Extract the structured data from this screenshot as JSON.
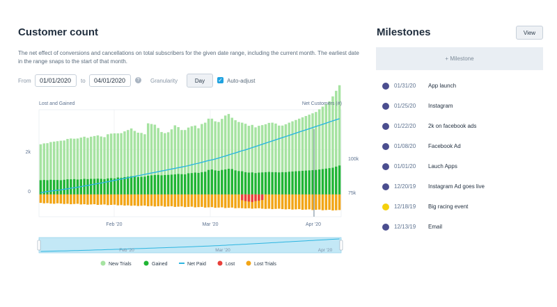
{
  "page": {
    "title": "Customer count",
    "description": "The net effect of conversions and cancellations on total subscribers for the given date range, including the current month. The earliest date in the range snaps to the start of that month."
  },
  "filters": {
    "from_label": "From",
    "from_value": "01/01/2020",
    "to_label": "to",
    "to_value": "04/01/2020",
    "help_icon": "?",
    "granularity_label": "Granularity",
    "granularity_value": "Day",
    "auto_adjust_label": "Auto-adjust",
    "auto_adjust_checked": true
  },
  "chart_data": {
    "type": "bar",
    "left_axis_title": "Lost and Gained",
    "right_axis_title": "Net Customers (#)",
    "left_ticks": [
      "2k",
      "0"
    ],
    "right_ticks": [
      "100k",
      "75k"
    ],
    "x_ticks": [
      "Feb '20",
      "Mar '20",
      "Apr '20"
    ],
    "range_ticks": [
      "Feb '20",
      "Mar '20",
      "Apr '20"
    ],
    "legend": [
      {
        "name": "New Trials",
        "color": "#a6e3a1"
      },
      {
        "name": "Gained",
        "color": "#20b534"
      },
      {
        "name": "Net Paid",
        "color": "#2cb5e0"
      },
      {
        "name": "Lost",
        "color": "#e8403a"
      },
      {
        "name": "Lost Trials",
        "color": "#f2a516"
      }
    ],
    "colors": {
      "new_trials": "#a6e3a1",
      "gained": "#20b534",
      "net_paid": "#2cb5e0",
      "lost": "#e8403a",
      "lost_trials": "#f2a516"
    },
    "left_range": [
      -1000,
      3800
    ],
    "right_range": [
      66000,
      114000
    ],
    "series": [
      {
        "name": "New Trials",
        "values": [
          1610,
          1640,
          1660,
          1690,
          1720,
          1740,
          1770,
          1760,
          1810,
          1830,
          1810,
          1840,
          1870,
          1890,
          1850,
          1890,
          1920,
          1940,
          1900,
          1880,
          1980,
          2000,
          2020,
          1980,
          2000,
          2050,
          2090,
          2140,
          2050,
          1990,
          1970,
          1900,
          2350,
          2300,
          2260,
          2100,
          1940,
          1880,
          1910,
          2030,
          2200,
          2100,
          1980,
          1990,
          2050,
          2100,
          2110,
          2000,
          2160,
          2200,
          2300,
          2280,
          2200,
          2190,
          2290,
          2420,
          2460,
          2300,
          2250,
          2200,
          2180,
          2170,
          2100,
          2130,
          2050,
          2100,
          2120,
          2150,
          2200,
          2220,
          2180,
          2100,
          2090,
          2150,
          2200,
          2250,
          2300,
          2350,
          2400,
          2450,
          2500,
          2550,
          2600,
          2700,
          2800,
          2900,
          3000,
          3200,
          3400,
          3600
        ]
      },
      {
        "name": "Gained",
        "values": [
          640,
          650,
          640,
          660,
          650,
          650,
          640,
          660,
          680,
          680,
          690,
          670,
          680,
          700,
          690,
          700,
          700,
          710,
          700,
          690,
          720,
          730,
          720,
          760,
          750,
          780,
          800,
          820,
          800,
          780,
          790,
          800,
          840,
          860,
          870,
          880,
          860,
          870,
          880,
          890,
          900,
          920,
          910,
          900,
          950,
          960,
          980,
          970,
          1000,
          1020,
          1100,
          1120,
          1080,
          1060,
          1100,
          1120,
          1150,
          1140,
          1080,
          1050,
          1040,
          1000,
          980,
          990,
          960,
          980,
          990,
          1000,
          1010,
          1000,
          1000,
          990,
          1000,
          1000,
          1020,
          1030,
          1040,
          1050,
          1060,
          1070,
          1080,
          1090,
          1100,
          1120,
          1140,
          1160,
          1180,
          1200,
          1250,
          1300
        ]
      },
      {
        "name": "Net Paid",
        "values": [
          76800,
          77000,
          77300,
          77500,
          77700,
          77900,
          78000,
          78300,
          78500,
          78800,
          79000,
          79200,
          79500,
          79800,
          80000,
          80300,
          80600,
          80900,
          81100,
          81400,
          81700,
          82000,
          82300,
          82600,
          82900,
          83200,
          83500,
          83800,
          84100,
          84400,
          84700,
          85000,
          85300,
          85600,
          85900,
          86200,
          86500,
          86800,
          87100,
          87400,
          87700,
          88000,
          88300,
          88600,
          88900,
          89300,
          89700,
          90000,
          90400,
          90800,
          91200,
          91500,
          91900,
          92300,
          92800,
          93200,
          93700,
          94200,
          94600,
          95100,
          95600,
          96000,
          96500,
          97000,
          97500,
          98000,
          98500,
          99000,
          99500,
          100000,
          100500,
          101000,
          101500,
          102000,
          102500,
          103000,
          103500,
          104000,
          104500,
          105000,
          105500,
          106000,
          106500,
          107000,
          107500,
          108000,
          108500,
          109000,
          109500,
          110000
        ]
      },
      {
        "name": "Lost",
        "values": [
          0,
          0,
          0,
          0,
          0,
          0,
          0,
          0,
          0,
          0,
          0,
          0,
          0,
          0,
          0,
          0,
          0,
          0,
          0,
          0,
          0,
          0,
          0,
          0,
          0,
          0,
          0,
          0,
          0,
          0,
          0,
          0,
          0,
          0,
          0,
          0,
          0,
          0,
          0,
          0,
          0,
          0,
          0,
          0,
          0,
          0,
          0,
          0,
          0,
          0,
          0,
          0,
          0,
          0,
          0,
          0,
          0,
          0,
          0,
          0,
          -260,
          -300,
          -320,
          -340,
          -300,
          -280,
          -250,
          0,
          0,
          0,
          0,
          0,
          0,
          0,
          0,
          0,
          0,
          0,
          0,
          0,
          0,
          0,
          0,
          0,
          0,
          0,
          0,
          0,
          0,
          0
        ]
      },
      {
        "name": "Lost Trials",
        "values": [
          -380,
          -400,
          -390,
          -410,
          -420,
          -400,
          -410,
          -430,
          -420,
          -440,
          -430,
          -420,
          -450,
          -440,
          -460,
          -450,
          -440,
          -470,
          -460,
          -450,
          -480,
          -470,
          -460,
          -490,
          -480,
          -500,
          -490,
          -510,
          -500,
          -520,
          -510,
          -500,
          -530,
          -520,
          -540,
          -530,
          -520,
          -550,
          -540,
          -530,
          -560,
          -550,
          -540,
          -570,
          -560,
          -550,
          -580,
          -570,
          -560,
          -590,
          -580,
          -570,
          -600,
          -590,
          -580,
          -610,
          -600,
          -590,
          -620,
          -610,
          -620,
          -630,
          -620,
          -640,
          -630,
          -620,
          -640,
          -650,
          -640,
          -660,
          -650,
          -640,
          -660,
          -670,
          -660,
          -680,
          -670,
          -660,
          -690,
          -680,
          -670,
          -700,
          -690,
          -680,
          -710,
          -700,
          -690,
          -720,
          -710,
          -700
        ]
      }
    ]
  },
  "milestones": {
    "title": "Milestones",
    "view_label": "View",
    "add_label": "+ Milestone",
    "items": [
      {
        "date": "01/31/20",
        "name": "App launch",
        "color": "#4b4e8f"
      },
      {
        "date": "01/25/20",
        "name": "Instagram",
        "color": "#4b4e8f"
      },
      {
        "date": "01/22/20",
        "name": "2k on facebook ads",
        "color": "#4b4e8f"
      },
      {
        "date": "01/08/20",
        "name": "Facebook Ad",
        "color": "#4b4e8f"
      },
      {
        "date": "01/01/20",
        "name": "Lauch Apps",
        "color": "#4b4e8f"
      },
      {
        "date": "12/20/19",
        "name": "Instagram Ad goes live",
        "color": "#4b4e8f"
      },
      {
        "date": "12/18/19",
        "name": "Big racing event",
        "color": "#f4d00c"
      },
      {
        "date": "12/13/19",
        "name": "Email",
        "color": "#4b4e8f"
      }
    ]
  }
}
